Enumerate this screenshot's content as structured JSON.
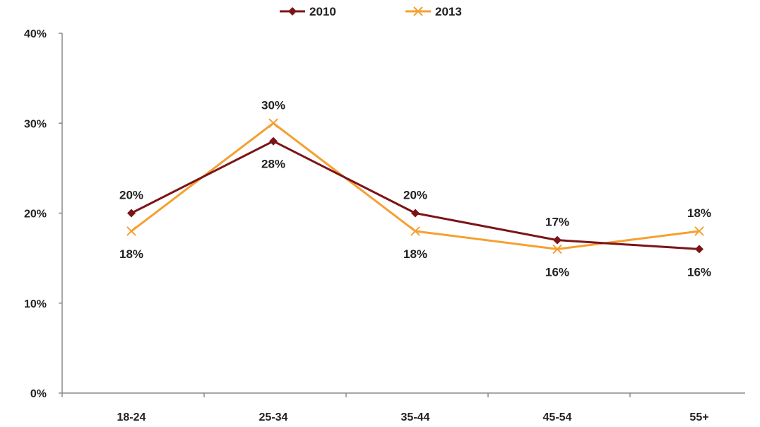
{
  "chart_data": {
    "type": "line",
    "categories": [
      "18-24",
      "25-34",
      "35-44",
      "45-54",
      "55+"
    ],
    "series": [
      {
        "name": "2010",
        "values": [
          20,
          28,
          20,
          17,
          16
        ],
        "labels": [
          "20%",
          "28%",
          "20%",
          "17%",
          "16%"
        ],
        "color": "#7b1418",
        "marker": "diamond"
      },
      {
        "name": "2013",
        "values": [
          18,
          30,
          18,
          16,
          18
        ],
        "labels": [
          "18%",
          "30%",
          "18%",
          "16%",
          "18%"
        ],
        "color": "#f5a032",
        "marker": "x"
      }
    ],
    "y_ticks": [
      "0%",
      "10%",
      "20%",
      "30%",
      "40%"
    ],
    "ylim": [
      0,
      40
    ],
    "grid": false,
    "legend_position": "top-center"
  }
}
